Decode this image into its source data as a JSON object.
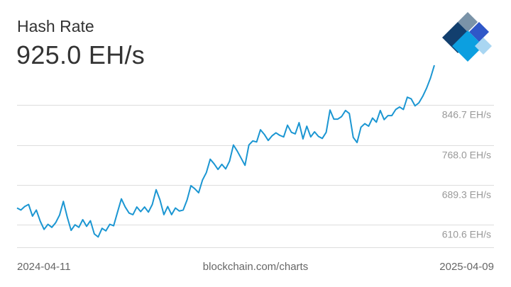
{
  "header": {
    "title": "Hash Rate",
    "current_value": "925.0 EH/s"
  },
  "logo": {
    "name": "blockchain-logo",
    "colors": [
      "#7a93a8",
      "#123f6e",
      "#2f57c8",
      "#0c9fe0",
      "#a9d6f2"
    ]
  },
  "footer": {
    "start_date": "2024-04-11",
    "source": "blockchain.com/charts",
    "end_date": "2025-04-09"
  },
  "colors": {
    "line": "#1b96d2",
    "grid": "#dddddd",
    "tick_text": "#999999"
  },
  "chart_data": {
    "type": "line",
    "title": "Hash Rate",
    "xlabel": "",
    "ylabel": "",
    "x_range": [
      "2024-04-11",
      "2025-04-09"
    ],
    "y_tick_values": [
      846.7,
      768.0,
      689.3,
      610.6
    ],
    "y_tick_labels": [
      "846.7 EH/s",
      "768.0 EH/s",
      "689.3 EH/s",
      "610.6 EH/s"
    ],
    "ylim": [
      582,
      900
    ],
    "grid": true,
    "series": [
      {
        "values": [
          {
            "x": "2024-04-11",
            "y": 644
          },
          {
            "x": "2024-04-14",
            "y": 640
          },
          {
            "x": "2024-04-17",
            "y": 647
          },
          {
            "x": "2024-04-20",
            "y": 651
          },
          {
            "x": "2024-04-23",
            "y": 628
          },
          {
            "x": "2024-04-26",
            "y": 640
          },
          {
            "x": "2024-04-29",
            "y": 618
          },
          {
            "x": "2024-05-02",
            "y": 602
          },
          {
            "x": "2024-05-05",
            "y": 612
          },
          {
            "x": "2024-05-08",
            "y": 606
          },
          {
            "x": "2024-05-11",
            "y": 615
          },
          {
            "x": "2024-05-14",
            "y": 630
          },
          {
            "x": "2024-05-17",
            "y": 657
          },
          {
            "x": "2024-05-20",
            "y": 626
          },
          {
            "x": "2024-05-23",
            "y": 600
          },
          {
            "x": "2024-05-26",
            "y": 611
          },
          {
            "x": "2024-05-29",
            "y": 606
          },
          {
            "x": "2024-06-01",
            "y": 621
          },
          {
            "x": "2024-06-04",
            "y": 608
          },
          {
            "x": "2024-06-07",
            "y": 619
          },
          {
            "x": "2024-06-10",
            "y": 593
          },
          {
            "x": "2024-06-13",
            "y": 587
          },
          {
            "x": "2024-06-16",
            "y": 604
          },
          {
            "x": "2024-06-19",
            "y": 599
          },
          {
            "x": "2024-06-22",
            "y": 612
          },
          {
            "x": "2024-06-25",
            "y": 609
          },
          {
            "x": "2024-06-28",
            "y": 636
          },
          {
            "x": "2024-07-01",
            "y": 662
          },
          {
            "x": "2024-07-04",
            "y": 646
          },
          {
            "x": "2024-07-07",
            "y": 634
          },
          {
            "x": "2024-07-10",
            "y": 631
          },
          {
            "x": "2024-07-13",
            "y": 646
          },
          {
            "x": "2024-07-16",
            "y": 637
          },
          {
            "x": "2024-07-19",
            "y": 646
          },
          {
            "x": "2024-07-22",
            "y": 636
          },
          {
            "x": "2024-07-25",
            "y": 651
          },
          {
            "x": "2024-07-28",
            "y": 680
          },
          {
            "x": "2024-07-31",
            "y": 660
          },
          {
            "x": "2024-08-03",
            "y": 631
          },
          {
            "x": "2024-08-06",
            "y": 647
          },
          {
            "x": "2024-08-09",
            "y": 631
          },
          {
            "x": "2024-08-12",
            "y": 644
          },
          {
            "x": "2024-08-15",
            "y": 638
          },
          {
            "x": "2024-08-18",
            "y": 640
          },
          {
            "x": "2024-08-21",
            "y": 660
          },
          {
            "x": "2024-08-24",
            "y": 688
          },
          {
            "x": "2024-08-27",
            "y": 682
          },
          {
            "x": "2024-08-30",
            "y": 674
          },
          {
            "x": "2024-09-02",
            "y": 699
          },
          {
            "x": "2024-09-05",
            "y": 714
          },
          {
            "x": "2024-09-08",
            "y": 740
          },
          {
            "x": "2024-09-11",
            "y": 731
          },
          {
            "x": "2024-09-14",
            "y": 720
          },
          {
            "x": "2024-09-17",
            "y": 730
          },
          {
            "x": "2024-09-20",
            "y": 721
          },
          {
            "x": "2024-09-23",
            "y": 736
          },
          {
            "x": "2024-09-26",
            "y": 768
          },
          {
            "x": "2024-09-29",
            "y": 756
          },
          {
            "x": "2024-10-02",
            "y": 742
          },
          {
            "x": "2024-10-05",
            "y": 728
          },
          {
            "x": "2024-10-08",
            "y": 768
          },
          {
            "x": "2024-10-11",
            "y": 776
          },
          {
            "x": "2024-10-14",
            "y": 774
          },
          {
            "x": "2024-10-17",
            "y": 798
          },
          {
            "x": "2024-10-20",
            "y": 789
          },
          {
            "x": "2024-10-23",
            "y": 777
          },
          {
            "x": "2024-10-26",
            "y": 786
          },
          {
            "x": "2024-10-29",
            "y": 792
          },
          {
            "x": "2024-11-01",
            "y": 787
          },
          {
            "x": "2024-11-04",
            "y": 784
          },
          {
            "x": "2024-11-07",
            "y": 807
          },
          {
            "x": "2024-11-10",
            "y": 793
          },
          {
            "x": "2024-11-13",
            "y": 790
          },
          {
            "x": "2024-11-16",
            "y": 812
          },
          {
            "x": "2024-11-19",
            "y": 780
          },
          {
            "x": "2024-11-22",
            "y": 805
          },
          {
            "x": "2024-11-25",
            "y": 784
          },
          {
            "x": "2024-11-28",
            "y": 794
          },
          {
            "x": "2024-12-01",
            "y": 785
          },
          {
            "x": "2024-12-04",
            "y": 781
          },
          {
            "x": "2024-12-07",
            "y": 793
          },
          {
            "x": "2024-12-10",
            "y": 837
          },
          {
            "x": "2024-12-13",
            "y": 819
          },
          {
            "x": "2024-12-16",
            "y": 819
          },
          {
            "x": "2024-12-19",
            "y": 824
          },
          {
            "x": "2024-12-22",
            "y": 836
          },
          {
            "x": "2024-12-25",
            "y": 830
          },
          {
            "x": "2024-12-28",
            "y": 783
          },
          {
            "x": "2024-12-31",
            "y": 773
          },
          {
            "x": "2025-01-03",
            "y": 803
          },
          {
            "x": "2025-01-06",
            "y": 810
          },
          {
            "x": "2025-01-09",
            "y": 805
          },
          {
            "x": "2025-01-12",
            "y": 821
          },
          {
            "x": "2025-01-15",
            "y": 813
          },
          {
            "x": "2025-01-18",
            "y": 836
          },
          {
            "x": "2025-01-21",
            "y": 818
          },
          {
            "x": "2025-01-24",
            "y": 826
          },
          {
            "x": "2025-01-27",
            "y": 826
          },
          {
            "x": "2025-01-30",
            "y": 838
          },
          {
            "x": "2025-02-02",
            "y": 843
          },
          {
            "x": "2025-02-05",
            "y": 838
          },
          {
            "x": "2025-02-08",
            "y": 862
          },
          {
            "x": "2025-02-11",
            "y": 859
          },
          {
            "x": "2025-02-14",
            "y": 845
          },
          {
            "x": "2025-02-17",
            "y": 851
          },
          {
            "x": "2025-02-20",
            "y": 864
          },
          {
            "x": "2025-02-23",
            "y": 880
          },
          {
            "x": "2025-02-26",
            "y": 900
          },
          {
            "x": "2025-03-01",
            "y": 925
          }
        ]
      }
    ]
  }
}
